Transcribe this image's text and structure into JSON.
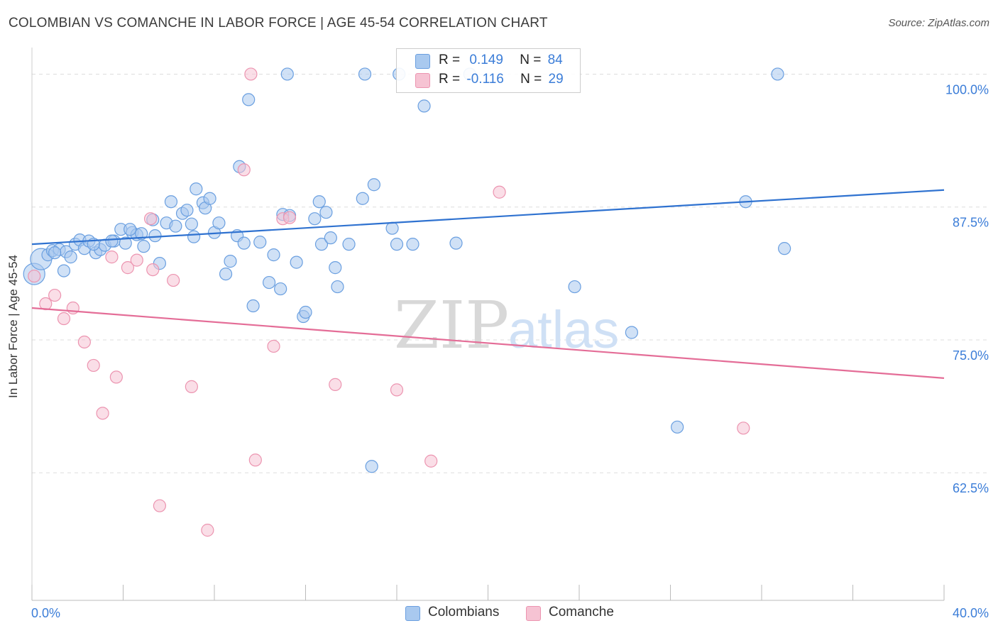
{
  "title": "COLOMBIAN VS COMANCHE IN LABOR FORCE | AGE 45-54 CORRELATION CHART",
  "source": "Source: ZipAtlas.com",
  "watermark": {
    "zip": "ZIP",
    "atlas": "atlas"
  },
  "legend_top": [
    {
      "r_label": "R =",
      "r_value": "0.149",
      "n_label": "N =",
      "n_value": "84"
    },
    {
      "r_label": "R =",
      "r_value": "-0.116",
      "n_label": "N =",
      "n_value": "29"
    }
  ],
  "legend_bottom": [
    {
      "label": "Colombians"
    },
    {
      "label": "Comanche"
    }
  ],
  "colors": {
    "blue_fill": "#a9c9ef",
    "blue_stroke": "#6a9fe0",
    "blue_line": "#2f72d0",
    "pink_fill": "#f6c3d3",
    "pink_stroke": "#ec94b0",
    "pink_line": "#e46d97",
    "tick_text": "#3b7dd8",
    "grid": "#dddddd"
  },
  "chart_data": {
    "type": "scatter",
    "title": "COLOMBIAN VS COMANCHE IN LABOR FORCE | AGE 45-54 CORRELATION CHART",
    "xlabel": "",
    "ylabel": "In Labor Force | Age 45-54",
    "xlim": [
      0,
      40
    ],
    "ylim": [
      50.5,
      102.5
    ],
    "x_tick_labels": [
      "0.0%",
      "40.0%"
    ],
    "y_ticks": [
      62.5,
      75.0,
      87.5,
      100.0
    ],
    "y_tick_labels": [
      "62.5%",
      "75.0%",
      "87.5%",
      "100.0%"
    ],
    "grid": true,
    "legend_placement": "top-center",
    "series": [
      {
        "name": "Colombians",
        "color": "#a9c9ef",
        "trend": {
          "x": [
            0,
            40
          ],
          "y": [
            84.0,
            89.1
          ]
        },
        "points": [
          [
            0.1,
            81.2
          ],
          [
            0.4,
            82.6
          ],
          [
            0.7,
            83.0
          ],
          [
            0.9,
            83.4
          ],
          [
            1.2,
            83.5
          ],
          [
            1.4,
            81.5
          ],
          [
            1.5,
            83.3
          ],
          [
            1.7,
            82.8
          ],
          [
            1.9,
            84.0
          ],
          [
            2.1,
            84.4
          ],
          [
            2.3,
            83.6
          ],
          [
            2.5,
            84.3
          ],
          [
            2.8,
            83.2
          ],
          [
            3.0,
            83.5
          ],
          [
            3.2,
            83.9
          ],
          [
            3.6,
            84.3
          ],
          [
            3.9,
            85.4
          ],
          [
            4.1,
            84.1
          ],
          [
            4.4,
            85.1
          ],
          [
            4.6,
            84.9
          ],
          [
            4.8,
            85.0
          ],
          [
            4.9,
            83.8
          ],
          [
            5.3,
            86.3
          ],
          [
            5.6,
            82.2
          ],
          [
            5.9,
            86.0
          ],
          [
            6.1,
            88.0
          ],
          [
            6.3,
            85.7
          ],
          [
            6.6,
            86.9
          ],
          [
            6.8,
            87.2
          ],
          [
            7.0,
            85.9
          ],
          [
            7.1,
            84.7
          ],
          [
            7.2,
            89.2
          ],
          [
            7.5,
            87.9
          ],
          [
            7.6,
            87.4
          ],
          [
            7.8,
            88.3
          ],
          [
            8.0,
            85.1
          ],
          [
            8.2,
            86.0
          ],
          [
            8.5,
            81.2
          ],
          [
            8.7,
            82.4
          ],
          [
            9.0,
            84.8
          ],
          [
            9.1,
            91.3
          ],
          [
            9.3,
            84.1
          ],
          [
            9.5,
            97.6
          ],
          [
            9.7,
            78.2
          ],
          [
            10.0,
            84.2
          ],
          [
            10.4,
            80.4
          ],
          [
            10.6,
            83.0
          ],
          [
            10.9,
            79.8
          ],
          [
            11.0,
            86.8
          ],
          [
            11.3,
            86.7
          ],
          [
            11.6,
            82.3
          ],
          [
            11.9,
            77.2
          ],
          [
            12.0,
            77.6
          ],
          [
            12.4,
            86.4
          ],
          [
            12.6,
            88.0
          ],
          [
            12.7,
            84.0
          ],
          [
            12.9,
            87.0
          ],
          [
            13.1,
            84.6
          ],
          [
            13.3,
            81.8
          ],
          [
            13.4,
            80.0
          ],
          [
            13.9,
            84.0
          ],
          [
            14.5,
            88.3
          ],
          [
            15.0,
            89.6
          ],
          [
            15.8,
            85.5
          ],
          [
            16.0,
            84.0
          ],
          [
            16.7,
            84.0
          ],
          [
            17.2,
            97.0
          ],
          [
            18.6,
            84.1
          ],
          [
            23.8,
            80.0
          ],
          [
            26.3,
            75.7
          ],
          [
            28.3,
            66.8
          ],
          [
            31.3,
            88.0
          ],
          [
            33.0,
            83.6
          ],
          [
            11.2,
            100.0
          ],
          [
            14.6,
            100.0
          ],
          [
            16.1,
            100.0
          ],
          [
            19.2,
            100.0
          ],
          [
            32.7,
            100.0
          ],
          [
            14.9,
            63.1
          ],
          [
            2.7,
            84.0
          ],
          [
            5.4,
            84.8
          ],
          [
            3.5,
            84.3
          ],
          [
            1.0,
            83.2
          ],
          [
            4.3,
            85.4
          ]
        ],
        "sizes": [
          "lg",
          "lg",
          "md",
          "md",
          "md",
          "md",
          "md",
          "md",
          "md",
          "md",
          "md",
          "md",
          "md",
          "md",
          "md",
          "md",
          "md",
          "md",
          "md",
          "md",
          "md",
          "md",
          "md",
          "md",
          "md",
          "md",
          "md",
          "md",
          "md",
          "md",
          "md",
          "md",
          "md",
          "md",
          "md",
          "md",
          "md",
          "md",
          "md",
          "md",
          "md",
          "md",
          "md",
          "md",
          "md",
          "md",
          "md",
          "md",
          "md",
          "md",
          "md",
          "md",
          "md",
          "md",
          "md",
          "md",
          "md",
          "md",
          "md",
          "md",
          "md",
          "md",
          "md",
          "md",
          "md",
          "md",
          "md",
          "md",
          "md",
          "md",
          "md",
          "md",
          "md",
          "md",
          "md",
          "md",
          "md",
          "md",
          "md",
          "md",
          "md",
          "md",
          "md",
          "md"
        ]
      },
      {
        "name": "Comanche",
        "color": "#f6c3d3",
        "trend": {
          "x": [
            0,
            40
          ],
          "y": [
            78.0,
            71.4
          ]
        },
        "points": [
          [
            0.1,
            81.0
          ],
          [
            0.6,
            78.4
          ],
          [
            1.0,
            79.2
          ],
          [
            1.4,
            77.0
          ],
          [
            1.8,
            78.0
          ],
          [
            2.3,
            74.8
          ],
          [
            2.7,
            72.6
          ],
          [
            3.1,
            68.1
          ],
          [
            3.5,
            82.8
          ],
          [
            3.7,
            71.5
          ],
          [
            4.2,
            81.8
          ],
          [
            4.6,
            82.5
          ],
          [
            5.3,
            81.6
          ],
          [
            5.6,
            59.4
          ],
          [
            6.2,
            80.6
          ],
          [
            7.0,
            70.6
          ],
          [
            7.7,
            57.1
          ],
          [
            9.3,
            91.0
          ],
          [
            9.6,
            100.0
          ],
          [
            9.8,
            63.7
          ],
          [
            10.6,
            74.4
          ],
          [
            11.0,
            86.4
          ],
          [
            11.3,
            86.5
          ],
          [
            13.3,
            70.8
          ],
          [
            16.0,
            70.3
          ],
          [
            17.5,
            63.6
          ],
          [
            20.5,
            88.9
          ],
          [
            31.2,
            66.7
          ],
          [
            5.2,
            86.4
          ]
        ],
        "sizes": [
          "md",
          "md",
          "md",
          "md",
          "md",
          "md",
          "md",
          "md",
          "md",
          "md",
          "md",
          "md",
          "md",
          "md",
          "md",
          "md",
          "md",
          "md",
          "md",
          "md",
          "md",
          "md",
          "md",
          "md",
          "md",
          "md",
          "md",
          "md",
          "md"
        ]
      }
    ]
  }
}
